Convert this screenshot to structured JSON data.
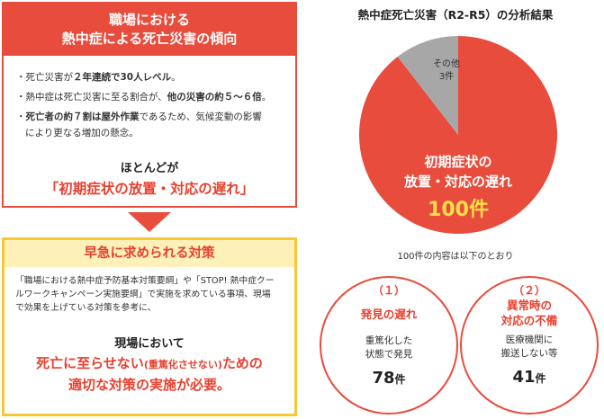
{
  "trend": {
    "title_line1": "職場における",
    "title_line2": "熱中症による死亡災害の傾向",
    "bullet1_pre": "・死亡災害が",
    "bullet1_bold": "２年連続で30人レベル",
    "bullet1_post": "。",
    "bullet2_pre": "・熱中症は死亡災害に至る割合が、",
    "bullet2_bold": "他の災害の約５～６倍",
    "bullet2_post": "。",
    "bullet3_pre": "・",
    "bullet3_bold": "死亡者の約７割は屋外作業",
    "bullet3_post": "であるため、気候変動の影響",
    "bullet3_line2": "により更なる増加の懸念。",
    "summary_line1": "ほとんどが",
    "summary_line2": "「初期症状の放置・対応の遅れ」"
  },
  "measures": {
    "title": "早急に求められる対策",
    "body_line1": "「職場における熱中症予防基本対策要綱」や「STOP! 熱中症クー",
    "body_line2": "ルワークキャンペーン実施要綱」で実施を求めている事項、現場",
    "body_line3": "で効果を上げている対策を参考に、",
    "emph_line1": "現場において",
    "emph_line2a": "死亡に至らせない",
    "emph_line2b": "(重篤化させない)",
    "emph_line2c": "ための",
    "emph_line3": "適切な対策の実施が必要。"
  },
  "chart_data": {
    "type": "pie",
    "title": "熱中症死亡災害（R2-R5）の分析結果",
    "categories": [
      "初期症状の放置・対応の遅れ",
      "その他"
    ],
    "values": [
      100,
      3
    ],
    "value_labels": [
      "100件",
      "3件"
    ],
    "colors": [
      "#e84c3d",
      "#a7a7a7"
    ],
    "caption": "100件の内容は以下のとおり",
    "label_main_line1": "初期症状の",
    "label_main_line2": "放置・対応の遅れ",
    "label_other": "その他"
  },
  "breakdown": [
    {
      "num": "（１）",
      "title_line1": "発見の遅れ",
      "title_line2": "",
      "desc_line1": "重篤化した",
      "desc_line2": "状態で発見",
      "count": "78",
      "unit": "件"
    },
    {
      "num": "（２）",
      "title_line1": "異常時の",
      "title_line2": "対応の不備",
      "desc_line1": "医療機関に",
      "desc_line2": "搬送しない等",
      "count": "41",
      "unit": "件"
    }
  ],
  "colors": {
    "accent_red": "#e84c3d",
    "accent_yellow": "#f6c933",
    "header_yellow_bg": "#fdf0b8",
    "gray": "#a7a7a7"
  }
}
